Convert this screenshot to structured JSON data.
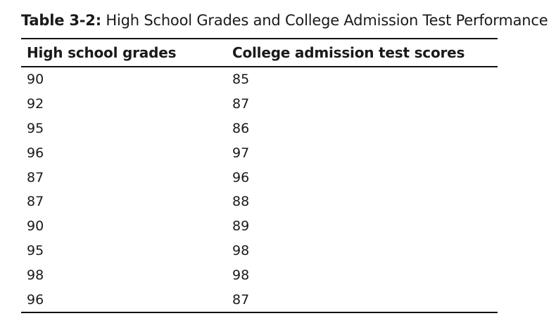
{
  "table": {
    "label": "Table 3-2:",
    "title": "High School Grades and College Admission Test Performance",
    "headers": [
      "High school grades",
      "College admission test scores"
    ],
    "rows": [
      [
        "90",
        "85"
      ],
      [
        "92",
        "87"
      ],
      [
        "95",
        "86"
      ],
      [
        "96",
        "97"
      ],
      [
        "87",
        "96"
      ],
      [
        "87",
        "88"
      ],
      [
        "90",
        "89"
      ],
      [
        "95",
        "98"
      ],
      [
        "98",
        "98"
      ],
      [
        "96",
        "87"
      ]
    ]
  }
}
